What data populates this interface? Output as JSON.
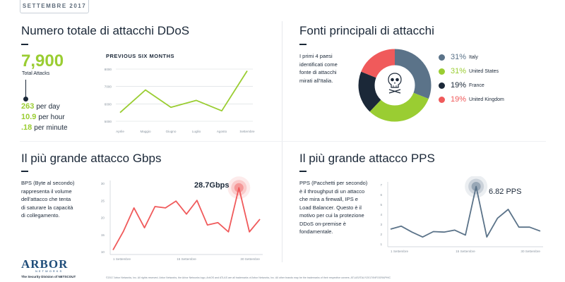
{
  "header": {
    "date": "SETTEMBRE 2017"
  },
  "total_attacks": {
    "title": "Numero totale di attacchi DDoS",
    "value": "7,900",
    "label": "Total Attacks",
    "rates": [
      {
        "value": "263",
        "unit": "per day"
      },
      {
        "value": "10.9",
        "unit": "per hour"
      },
      {
        "value": ".18",
        "unit": "per minute"
      }
    ]
  },
  "sources": {
    "title": "Fonti principali di attacchi",
    "description": "I primi 4 paesi\nidentificati come\nfonte di attacchi\nmirati all'Italia.",
    "legend": [
      {
        "pct": "31%",
        "country": "Italy",
        "color": "#5b7389"
      },
      {
        "pct": "31%",
        "country": "United States",
        "color": "#9acd32"
      },
      {
        "pct": "19%",
        "country": "France",
        "color": "#1b2838"
      },
      {
        "pct": "19%",
        "country": "United Kingdom",
        "color": "#f05a5b"
      }
    ]
  },
  "gbps": {
    "title": "Il più grande attacco Gbps",
    "description": "BPS (Byte al secondo)\nrappresenta il volume\ndell'attacco che tenta\ndi  saturare la capacità\ndi collegamento.",
    "peak_label": "28.7Gbps"
  },
  "pps": {
    "title": "Il più grande attacco PPS",
    "description": "PPS (Pacchetti per secondo)\nè il throughput di un attacco\nche mira a firewall, IPS e\nLoad Balancer. Questo è il\nmotivo per cui la protezione\nDDoS on-premise è\nfondamentale.",
    "peak_label": "6.82 PPS"
  },
  "chart_data": [
    {
      "type": "line",
      "title": "PREVIOUS SIX MONTHS",
      "categories": [
        "Aprile",
        "Maggio",
        "Giugno",
        "Luglio",
        "Agosto",
        "Settembre"
      ],
      "values": [
        5500,
        6800,
        5800,
        6200,
        5600,
        7900
      ],
      "yticks": [
        5000,
        6000,
        7000,
        8000
      ],
      "ylim": [
        5000,
        8000
      ],
      "grid": true,
      "color": "#9acd32"
    },
    {
      "type": "line",
      "title": "",
      "xticks": [
        "1 Settembre",
        "15 Settembre",
        "30 Settembre"
      ],
      "yticks": [
        10,
        15,
        20,
        25,
        30
      ],
      "ylim": [
        10,
        30
      ],
      "values": [
        10.5,
        16,
        22.8,
        17,
        23.2,
        22.8,
        24.8,
        21,
        25,
        17.8,
        18.5,
        15.8,
        28.7,
        15.8,
        19.5
      ],
      "peak": 28.7,
      "color": "#f05a5b"
    },
    {
      "type": "line",
      "title": "",
      "xticks": [
        "1 Settembre",
        "15 Settembre",
        "30 Settembre"
      ],
      "yticks": [
        1,
        2,
        3,
        4,
        5,
        6,
        7
      ],
      "ylim": [
        1,
        7
      ],
      "values": [
        2.5,
        2.8,
        2.2,
        1.7,
        2.25,
        2.2,
        2.4,
        1.9,
        6.82,
        1.7,
        3.6,
        4.5,
        2.7,
        2.7,
        2.3
      ],
      "peak": 6.82,
      "color": "#5b7389"
    },
    {
      "type": "pie",
      "labels": [
        "Italy",
        "United States",
        "France",
        "United Kingdom"
      ],
      "values": [
        31,
        31,
        19,
        19
      ],
      "colors": [
        "#5b7389",
        "#9acd32",
        "#1b2838",
        "#f05a5b"
      ]
    }
  ],
  "footer": {
    "logo": "ARBOR",
    "logo_sub": "NETWORKS",
    "tagline": "The Security Division of NETSCOUT",
    "legal": "©2017 Arbor Networks, Inc. All rights reserved. Arbor Networks, the Arbor Networks logo, ArbOS and ATLAS are all trademarks of Arbor Networks, Inc. All other brands may be the trademarks of their respective owners.  ATLAS/ITALY/2017/INFOGRAPHIC"
  }
}
